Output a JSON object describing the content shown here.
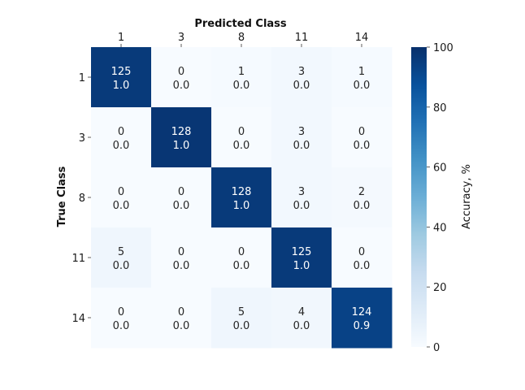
{
  "chart_data": {
    "type": "heatmap",
    "title": "",
    "xlabel": "Predicted Class",
    "ylabel": "True Class",
    "x_categories": [
      "1",
      "3",
      "8",
      "11",
      "14"
    ],
    "y_categories": [
      "1",
      "3",
      "8",
      "11",
      "14"
    ],
    "counts": [
      [
        125,
        0,
        1,
        3,
        1
      ],
      [
        0,
        128,
        0,
        3,
        0
      ],
      [
        0,
        0,
        128,
        3,
        2
      ],
      [
        5,
        0,
        0,
        125,
        0
      ],
      [
        0,
        0,
        5,
        4,
        124
      ]
    ],
    "fractions": [
      [
        "1.0",
        "0.0",
        "0.0",
        "0.0",
        "0.0"
      ],
      [
        "0.0",
        "1.0",
        "0.0",
        "0.0",
        "0.0"
      ],
      [
        "0.0",
        "0.0",
        "1.0",
        "0.0",
        "0.0"
      ],
      [
        "0.0",
        "0.0",
        "0.0",
        "1.0",
        "0.0"
      ],
      [
        "0.0",
        "0.0",
        "0.0",
        "0.0",
        "0.9"
      ]
    ],
    "colorbar": {
      "label": "Accuracy, %",
      "range": [
        0,
        100
      ],
      "ticks": [
        "0",
        "20",
        "40",
        "60",
        "80",
        "100"
      ],
      "colormap": [
        "#f7fbff",
        "#deebf7",
        "#c6dbef",
        "#9ecae1",
        "#6baed6",
        "#4292c6",
        "#2171b5",
        "#08519c",
        "#08306b"
      ]
    },
    "x_axis_position": "top",
    "grid": false
  }
}
